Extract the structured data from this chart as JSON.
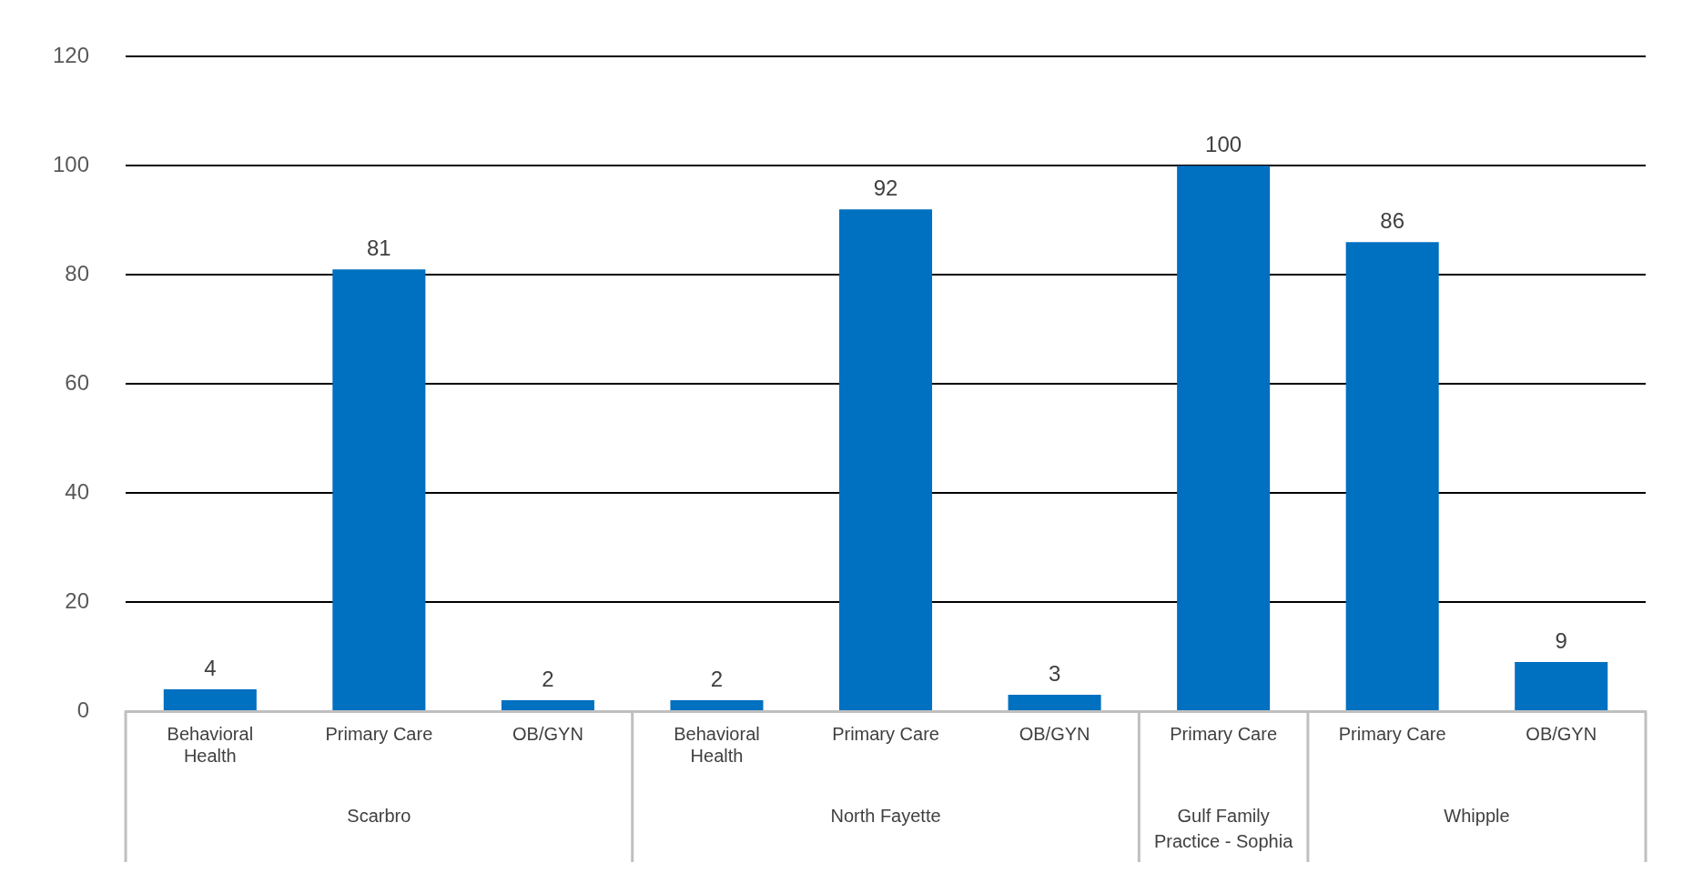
{
  "chart_data": {
    "type": "bar",
    "categories": [
      "Behavioral Health",
      "Primary Care",
      "OB/GYN",
      "Behavioral Health",
      "Primary Care",
      "OB/GYN",
      "Primary Care",
      "Primary Care",
      "OB/GYN"
    ],
    "values": [
      4,
      81,
      2,
      2,
      92,
      3,
      100,
      86,
      9
    ],
    "color": "#0070c0",
    "ylim": [
      0,
      120
    ],
    "yticks": [
      0,
      20,
      40,
      60,
      80,
      100,
      120
    ],
    "grid": "y",
    "data_labels": true,
    "annotations": [
      "Scarbro",
      "North Fayette",
      "Gulf Family Practice - Sophia",
      "Whipple"
    ]
  }
}
